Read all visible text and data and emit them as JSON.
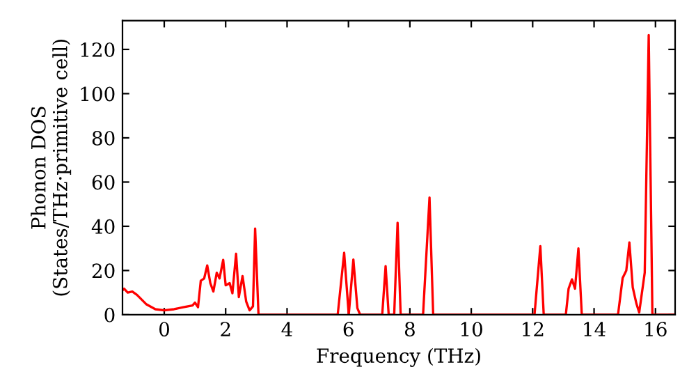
{
  "chart_data": {
    "type": "line",
    "xlabel": "Frequency (THz)",
    "ylabel": "Phonon DOS\n(States/THz·primitive cell)",
    "xlim": [
      -1.36,
      16.64
    ],
    "ylim": [
      0,
      133
    ],
    "xticks": [
      0,
      2,
      4,
      6,
      8,
      10,
      12,
      14,
      16
    ],
    "yticks": [
      0,
      20,
      40,
      60,
      80,
      100,
      120
    ],
    "grid": false,
    "legend": false,
    "marker": "none",
    "line_style": "solid",
    "series": [
      {
        "color": "#ff0000",
        "x": [
          -1.36,
          -1.31,
          -1.19,
          -1.04,
          -0.89,
          -0.59,
          -0.29,
          0.0,
          0.32,
          0.62,
          0.92,
          1.0,
          1.1,
          1.19,
          1.3,
          1.4,
          1.5,
          1.6,
          1.71,
          1.8,
          1.92,
          2.0,
          2.13,
          2.22,
          2.34,
          2.43,
          2.55,
          2.67,
          2.78,
          2.89,
          2.96,
          3.07,
          5.65,
          5.86,
          6.01,
          6.16,
          6.29,
          6.38,
          7.1,
          7.21,
          7.31,
          7.49,
          7.6,
          7.7,
          8.43,
          8.64,
          8.76,
          12.06,
          12.25,
          12.36,
          13.08,
          13.17,
          13.28,
          13.38,
          13.49,
          13.6,
          14.78,
          14.93,
          15.05,
          15.15,
          15.26,
          15.38,
          15.47,
          15.65,
          15.78,
          15.9,
          16.64
        ],
        "values": [
          11,
          11.8,
          10,
          10.5,
          9,
          4.8,
          2.5,
          2,
          2.5,
          3.4,
          4.2,
          5.5,
          3.4,
          15.4,
          16.4,
          22.3,
          14.3,
          10.5,
          19,
          16.4,
          24.8,
          13.3,
          14.3,
          9.7,
          27.6,
          8,
          17.5,
          5.9,
          2,
          3.8,
          39,
          0,
          0,
          28,
          0,
          25,
          3,
          0,
          0,
          22,
          0,
          0,
          41.6,
          0,
          0,
          53,
          0,
          0,
          31,
          0,
          0,
          11.8,
          16,
          11.8,
          30,
          0,
          0,
          16.6,
          20,
          32.7,
          12.4,
          5,
          1,
          19,
          126.5,
          0,
          0
        ]
      }
    ]
  }
}
